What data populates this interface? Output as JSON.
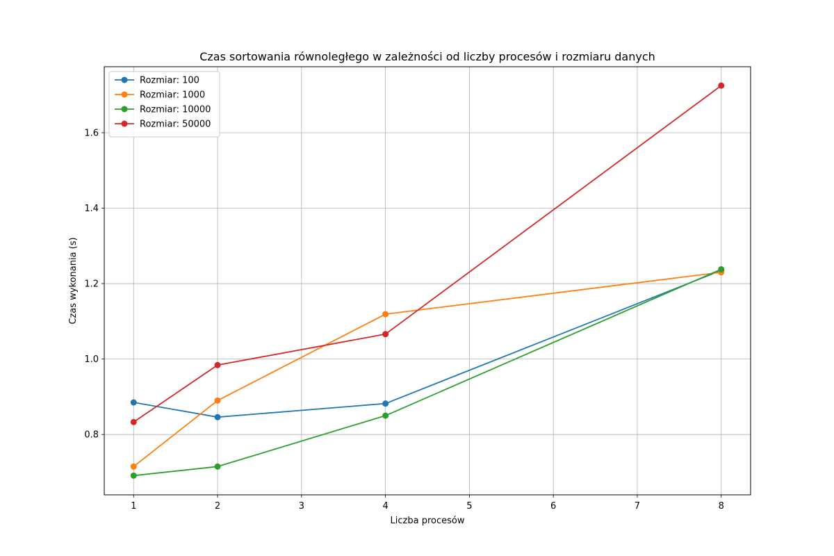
{
  "chart_data": {
    "type": "line",
    "title": "Czas sortowania równoległego w zależności od liczby procesów i rozmiaru danych",
    "xlabel": "Liczba procesów",
    "ylabel": "Czas wykonania (s)",
    "xlim": [
      0.65,
      8.35
    ],
    "ylim": [
      0.64,
      1.775
    ],
    "xticks": [
      1,
      2,
      3,
      4,
      5,
      6,
      7,
      8
    ],
    "yticks": [
      0.8,
      1.0,
      1.2,
      1.4,
      1.6
    ],
    "ytick_labels": [
      "0.8",
      "1.0",
      "1.2",
      "1.4",
      "1.6"
    ],
    "grid": true,
    "legend_position": "top-left",
    "x": [
      1,
      2,
      4,
      8
    ],
    "series": [
      {
        "name": "Rozmiar: 100",
        "color": "#1f77b4",
        "values": [
          0.885,
          0.846,
          0.882,
          1.235
        ]
      },
      {
        "name": "Rozmiar: 1000",
        "color": "#ff7f0e",
        "values": [
          0.715,
          0.89,
          1.119,
          1.23
        ]
      },
      {
        "name": "Rozmiar: 10000",
        "color": "#2ca02c",
        "values": [
          0.691,
          0.715,
          0.85,
          1.238
        ]
      },
      {
        "name": "Rozmiar: 50000",
        "color": "#d62728",
        "values": [
          0.833,
          0.984,
          1.066,
          1.725
        ]
      }
    ]
  }
}
